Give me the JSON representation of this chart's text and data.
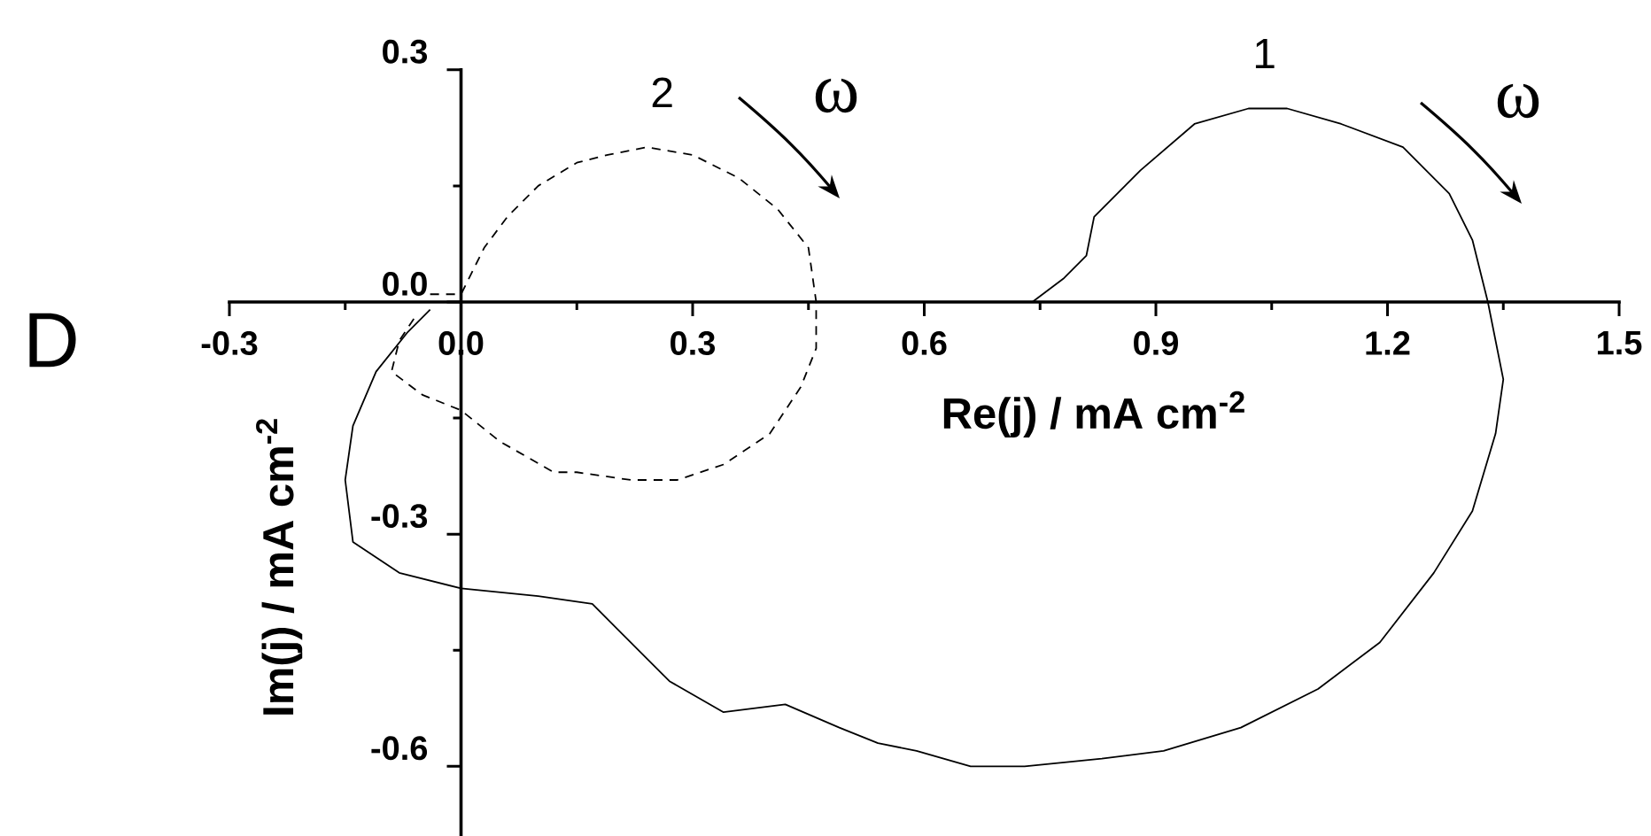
{
  "chart_data": {
    "type": "line",
    "xlabel": "Re(j) / mA cm$^{-2}$",
    "ylabel": "Im(j) / mA cm$^{-2}$",
    "xlim": [
      -0.3,
      1.5
    ],
    "ylim": [
      -0.69,
      0.3
    ],
    "xticks": [
      -0.3,
      {
        "value": -0.15,
        "label": null
      },
      {
        "value": 0,
        "label": "0.0"
      },
      {
        "value": 0.15,
        "label": null
      },
      0.3,
      {
        "value": 0.45,
        "label": null
      },
      0.6,
      {
        "value": 0.75,
        "label": null
      },
      0.9,
      {
        "value": 1.05,
        "label": null
      },
      1.2,
      {
        "value": 1.35,
        "label": null
      },
      1.5
    ],
    "yticks": [
      -0.6,
      {
        "value": -0.45,
        "label": null
      },
      -0.3,
      {
        "value": -0.15,
        "label": null
      },
      {
        "value": 0,
        "label": "0.0"
      },
      {
        "value": 0.15,
        "label": null
      },
      0.3
    ],
    "series": [
      {
        "name": "1",
        "color": "#000000",
        "line_style": "solid",
        "x": [
          0.74,
          0.78,
          0.81,
          0.82,
          0.88,
          0.95,
          1.02,
          1.07,
          1.14,
          1.22,
          1.28,
          1.31,
          1.33,
          1.35,
          1.34,
          1.31,
          1.26,
          1.19,
          1.11,
          1.01,
          0.91,
          0.83,
          0.73,
          0.66,
          0.59,
          0.54,
          0.49,
          0.42,
          0.34,
          0.27,
          0.21,
          0.17,
          0.1,
          0.0,
          -0.08,
          -0.14,
          -0.15,
          -0.14,
          -0.11,
          -0.07,
          -0.04
        ],
        "values": [
          0.0,
          0.03,
          0.06,
          0.11,
          0.17,
          0.23,
          0.25,
          0.25,
          0.23,
          0.2,
          0.14,
          0.08,
          0.0,
          -0.1,
          -0.17,
          -0.27,
          -0.35,
          -0.44,
          -0.5,
          -0.55,
          -0.58,
          -0.59,
          -0.6,
          -0.6,
          -0.58,
          -0.57,
          -0.55,
          -0.52,
          -0.53,
          -0.49,
          -0.43,
          -0.39,
          -0.38,
          -0.37,
          -0.35,
          -0.31,
          -0.23,
          -0.16,
          -0.09,
          -0.04,
          -0.01
        ]
      },
      {
        "name": "2",
        "color": "#000000",
        "line_style": "dashed",
        "x": [
          -0.04,
          0.0,
          0.03,
          0.06,
          0.1,
          0.15,
          0.19,
          0.24,
          0.3,
          0.36,
          0.41,
          0.45,
          0.46,
          0.46,
          0.44,
          0.4,
          0.34,
          0.28,
          0.22,
          0.15,
          0.12,
          0.05,
          0.0,
          -0.05,
          -0.09,
          -0.08,
          -0.06
        ],
        "values": [
          0.01,
          0.01,
          0.07,
          0.11,
          0.15,
          0.18,
          0.19,
          0.2,
          0.19,
          0.16,
          0.12,
          0.07,
          0.0,
          -0.06,
          -0.11,
          -0.17,
          -0.21,
          -0.23,
          -0.23,
          -0.22,
          -0.22,
          -0.18,
          -0.14,
          -0.12,
          -0.09,
          -0.05,
          -0.02
        ]
      }
    ],
    "annotations": [
      "D",
      "ω",
      "ω"
    ]
  }
}
